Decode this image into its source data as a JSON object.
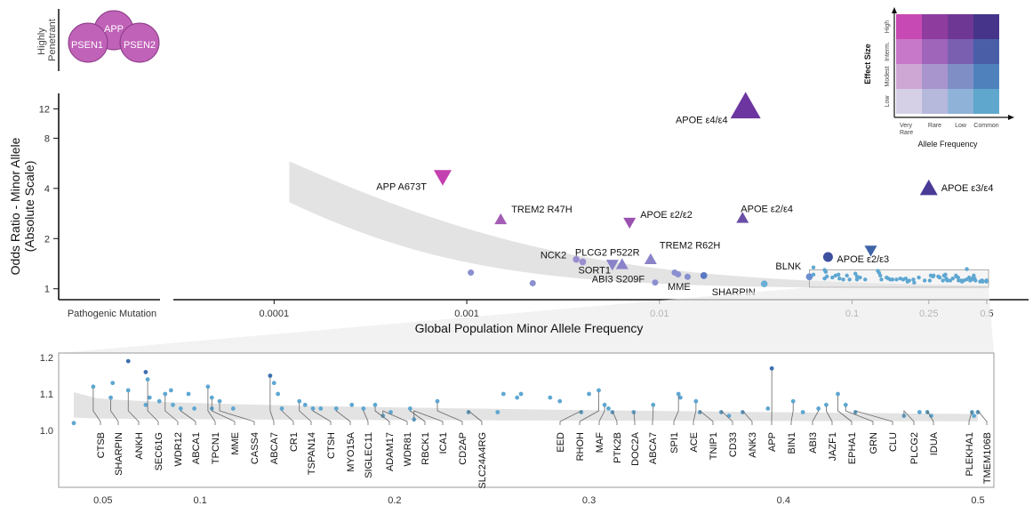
{
  "chart_data": [
    {
      "type": "scatter",
      "panel": "main",
      "xlabel": "Global Population Minor Allele Frequency",
      "ylabel": "Odds Ratio - Minor Allele",
      "ylabel2": "(Absolute Scale)",
      "x_scale": "log",
      "y_scale": "log",
      "xlim": [
        3e-05,
        0.5
      ],
      "ylim": [
        0.85,
        14
      ],
      "x_ticks": [
        {
          "value": 0.0001,
          "label": "0.0001"
        },
        {
          "value": 0.001,
          "label": "0.001"
        },
        {
          "value": 0.01,
          "label": "0.01"
        },
        {
          "value": 0.1,
          "label": "0.1"
        },
        {
          "value": 0.25,
          "label": "0.25"
        },
        {
          "value": 0.5,
          "label": "0.5"
        }
      ],
      "y_ticks": [
        {
          "value": 1,
          "label": "1"
        },
        {
          "value": 2,
          "label": "2"
        },
        {
          "value": 4,
          "label": "4"
        },
        {
          "value": 8,
          "label": "8"
        },
        {
          "value": 12,
          "label": "12"
        }
      ],
      "pathogenic_axis_label": "Pathogenic Mutation",
      "highly_penetrant_label": "Highly Penetrant",
      "highly_penetrant_genes": [
        "APP",
        "PSEN1",
        "PSEN2"
      ],
      "labeled_points": [
        {
          "label": "APOE ε4/ε4",
          "x": 0.028,
          "y": 12.3,
          "marker": "triangle-up",
          "size": "large",
          "color": "#6c35a0"
        },
        {
          "label": "APP A673T",
          "x": 0.00075,
          "y": 4.7,
          "marker": "triangle-down",
          "size": "medium",
          "color": "#c43fb0"
        },
        {
          "label": "APOE ε3/ε4",
          "x": 0.25,
          "y": 4.0,
          "marker": "triangle-up",
          "size": "medium",
          "color": "#4b3a96"
        },
        {
          "label": "TREM2 R47H",
          "x": 0.0015,
          "y": 2.6,
          "marker": "triangle-up",
          "size": "small",
          "color": "#a45db5"
        },
        {
          "label": "APOE ε2/ε2",
          "x": 0.007,
          "y": 2.5,
          "marker": "triangle-down",
          "size": "small",
          "color": "#9a52b0"
        },
        {
          "label": "APOE ε2/ε4",
          "x": 0.027,
          "y": 2.65,
          "marker": "triangle-up",
          "size": "small",
          "color": "#6a4fa8"
        },
        {
          "label": "APOE ε2/ε3",
          "x": 0.075,
          "y": 1.55,
          "marker": "circle",
          "size": "medium",
          "color": "#3d4f9f"
        },
        {
          "label": "",
          "x": 0.125,
          "y": 1.7,
          "marker": "triangle-down",
          "size": "small",
          "color": "#3d63a8"
        },
        {
          "label": "TREM2 R62H",
          "x": 0.009,
          "y": 1.5,
          "marker": "triangle-up",
          "size": "small",
          "color": "#8a83c8"
        },
        {
          "label": "PLCG2 P522R",
          "x": 0.0057,
          "y": 1.4,
          "marker": "triangle-down",
          "size": "small",
          "color": "#8a83c8"
        },
        {
          "label": "ABI3 S209F",
          "x": 0.0064,
          "y": 1.4,
          "marker": "triangle-up",
          "size": "small",
          "color": "#8a83c8"
        },
        {
          "label": "NCK2",
          "x": 0.0037,
          "y": 1.5,
          "marker": "circle",
          "size": "small",
          "color": "#9a8ed0"
        },
        {
          "label": "SORT1",
          "x": 0.004,
          "y": 1.45,
          "marker": "circle",
          "size": "small",
          "color": "#9a8ed0"
        },
        {
          "label": "MME",
          "x": 0.017,
          "y": 1.2,
          "marker": "circle",
          "size": "small",
          "color": "#5b79c2"
        },
        {
          "label": "BLNK",
          "x": 0.06,
          "y": 1.18,
          "marker": "circle",
          "size": "small",
          "color": "#6b8ed0"
        },
        {
          "label": "SHARPIN",
          "x": 0.035,
          "y": 1.07,
          "marker": "circle",
          "size": "small",
          "color": "#6aaed8"
        }
      ],
      "unlabeled_points": [
        {
          "x": 0.00105,
          "y": 1.25
        },
        {
          "x": 0.0022,
          "y": 1.08
        },
        {
          "x": 0.0095,
          "y": 1.09
        },
        {
          "x": 0.012,
          "y": 1.25
        },
        {
          "x": 0.0125,
          "y": 1.22
        },
        {
          "x": 0.014,
          "y": 1.18
        }
      ],
      "confidence_band": "gray shaded band decreasing with allele frequency",
      "legend": {
        "xlabel": "Allele Frequency",
        "ylabel": "Effect Size",
        "x_categories": [
          "Very Rare",
          "Rare",
          "Low",
          "Common"
        ],
        "y_categories": [
          "Low",
          "Modest",
          "Interm.",
          "High"
        ],
        "colors": [
          [
            "#d6d0e6",
            "#b6b8dc",
            "#8fb3d8",
            "#5fa7cc"
          ],
          [
            "#cfa7d5",
            "#a895ce",
            "#7f8fc6",
            "#4f82bd"
          ],
          [
            "#c878c8",
            "#9e65ba",
            "#7a5fb1",
            "#4a5ea8"
          ],
          [
            "#c749b3",
            "#8f3c9f",
            "#6e3794",
            "#45348a"
          ]
        ],
        "placement": "top-right"
      }
    },
    {
      "type": "scatter",
      "panel": "zoom",
      "x_ticks": [
        {
          "value": 0.05,
          "label": "0.05"
        },
        {
          "value": 0.1,
          "label": "0.1"
        },
        {
          "value": 0.2,
          "label": "0.2"
        },
        {
          "value": 0.3,
          "label": "0.3"
        },
        {
          "value": 0.4,
          "label": "0.4"
        },
        {
          "value": 0.5,
          "label": "0.5"
        }
      ],
      "y_ticks": [
        {
          "value": 1.0,
          "label": "1.0"
        },
        {
          "value": 1.1,
          "label": "1.1"
        },
        {
          "value": 1.2,
          "label": "1.2"
        }
      ],
      "xlim": [
        0.03,
        0.51
      ],
      "ylim": [
        0.99,
        1.21
      ],
      "points": [
        {
          "x": 0.035,
          "y": 1.02
        },
        {
          "x": 0.045,
          "y": 1.12
        },
        {
          "x": 0.054,
          "y": 1.09
        },
        {
          "x": 0.055,
          "y": 1.13
        },
        {
          "x": 0.063,
          "y": 1.19
        },
        {
          "x": 0.063,
          "y": 1.11
        },
        {
          "x": 0.072,
          "y": 1.16
        },
        {
          "x": 0.073,
          "y": 1.14
        },
        {
          "x": 0.074,
          "y": 1.09
        },
        {
          "x": 0.072,
          "y": 1.07
        },
        {
          "x": 0.079,
          "y": 1.08
        },
        {
          "x": 0.082,
          "y": 1.1
        },
        {
          "x": 0.085,
          "y": 1.11
        },
        {
          "x": 0.086,
          "y": 1.07
        },
        {
          "x": 0.09,
          "y": 1.06
        },
        {
          "x": 0.094,
          "y": 1.1
        },
        {
          "x": 0.097,
          "y": 1.06
        },
        {
          "x": 0.104,
          "y": 1.12
        },
        {
          "x": 0.106,
          "y": 1.09
        },
        {
          "x": 0.106,
          "y": 1.06
        },
        {
          "x": 0.11,
          "y": 1.08
        },
        {
          "x": 0.117,
          "y": 1.06
        },
        {
          "x": 0.136,
          "y": 1.15
        },
        {
          "x": 0.138,
          "y": 1.13
        },
        {
          "x": 0.14,
          "y": 1.1
        },
        {
          "x": 0.142,
          "y": 1.06
        },
        {
          "x": 0.151,
          "y": 1.08
        },
        {
          "x": 0.154,
          "y": 1.07
        },
        {
          "x": 0.158,
          "y": 1.06
        },
        {
          "x": 0.162,
          "y": 1.06
        },
        {
          "x": 0.17,
          "y": 1.06
        },
        {
          "x": 0.178,
          "y": 1.07
        },
        {
          "x": 0.184,
          "y": 1.06
        },
        {
          "x": 0.19,
          "y": 1.07
        },
        {
          "x": 0.194,
          "y": 1.04
        },
        {
          "x": 0.198,
          "y": 1.05
        },
        {
          "x": 0.208,
          "y": 1.06
        },
        {
          "x": 0.21,
          "y": 1.03
        },
        {
          "x": 0.222,
          "y": 1.08
        },
        {
          "x": 0.238,
          "y": 1.05
        },
        {
          "x": 0.253,
          "y": 1.05
        },
        {
          "x": 0.256,
          "y": 1.1
        },
        {
          "x": 0.263,
          "y": 1.09
        },
        {
          "x": 0.265,
          "y": 1.1
        },
        {
          "x": 0.28,
          "y": 1.09
        },
        {
          "x": 0.285,
          "y": 1.08
        },
        {
          "x": 0.296,
          "y": 1.05
        },
        {
          "x": 0.3,
          "y": 1.1
        },
        {
          "x": 0.305,
          "y": 1.11
        },
        {
          "x": 0.308,
          "y": 1.07
        },
        {
          "x": 0.31,
          "y": 1.06
        },
        {
          "x": 0.312,
          "y": 1.05
        },
        {
          "x": 0.323,
          "y": 1.05
        },
        {
          "x": 0.333,
          "y": 1.07
        },
        {
          "x": 0.346,
          "y": 1.1
        },
        {
          "x": 0.347,
          "y": 1.09
        },
        {
          "x": 0.355,
          "y": 1.08
        },
        {
          "x": 0.357,
          "y": 1.05
        },
        {
          "x": 0.368,
          "y": 1.05
        },
        {
          "x": 0.372,
          "y": 1.04
        },
        {
          "x": 0.379,
          "y": 1.05
        },
        {
          "x": 0.392,
          "y": 1.06
        },
        {
          "x": 0.394,
          "y": 1.17
        },
        {
          "x": 0.405,
          "y": 1.08
        },
        {
          "x": 0.41,
          "y": 1.05
        },
        {
          "x": 0.418,
          "y": 1.06
        },
        {
          "x": 0.422,
          "y": 1.07
        },
        {
          "x": 0.428,
          "y": 1.1
        },
        {
          "x": 0.432,
          "y": 1.07
        },
        {
          "x": 0.437,
          "y": 1.05
        },
        {
          "x": 0.462,
          "y": 1.04
        },
        {
          "x": 0.47,
          "y": 1.05
        },
        {
          "x": 0.474,
          "y": 1.05
        },
        {
          "x": 0.476,
          "y": 1.04
        },
        {
          "x": 0.497,
          "y": 1.05
        },
        {
          "x": 0.498,
          "y": 1.04
        },
        {
          "x": 0.5,
          "y": 1.05
        }
      ],
      "gene_labels": [
        {
          "label": "CTSB",
          "x": 0.045,
          "y": 1.12
        },
        {
          "label": "SHARPIN",
          "x": 0.054,
          "y": 1.09
        },
        {
          "label": "ANKH",
          "x": 0.063,
          "y": 1.11
        },
        {
          "label": "SEC61G",
          "x": 0.073,
          "y": 1.14
        },
        {
          "label": "WDR12",
          "x": 0.082,
          "y": 1.1
        },
        {
          "label": "ABCA1",
          "x": 0.09,
          "y": 1.06
        },
        {
          "label": "TPCN1",
          "x": 0.104,
          "y": 1.12
        },
        {
          "label": "MME",
          "x": 0.106,
          "y": 1.09
        },
        {
          "label": "CASS4",
          "x": 0.11,
          "y": 1.08
        },
        {
          "label": "ABCA7",
          "x": 0.136,
          "y": 1.15
        },
        {
          "label": "CR1",
          "x": 0.142,
          "y": 1.06
        },
        {
          "label": "TSPAN14",
          "x": 0.151,
          "y": 1.08
        },
        {
          "label": "CTSH",
          "x": 0.158,
          "y": 1.06
        },
        {
          "label": "MYO15A",
          "x": 0.17,
          "y": 1.06
        },
        {
          "label": "SIGLEC11",
          "x": 0.184,
          "y": 1.06
        },
        {
          "label": "ADAM17",
          "x": 0.19,
          "y": 1.07
        },
        {
          "label": "WDR81",
          "x": 0.194,
          "y": 1.04
        },
        {
          "label": "RBCK1",
          "x": 0.208,
          "y": 1.06
        },
        {
          "label": "ICA1",
          "x": 0.21,
          "y": 1.03
        },
        {
          "label": "CD2AP",
          "x": 0.222,
          "y": 1.08
        },
        {
          "label": "SLC24A4RG",
          "x": 0.238,
          "y": 1.05
        },
        {
          "label": "EED",
          "x": 0.296,
          "y": 1.05
        },
        {
          "label": "RHOH",
          "x": 0.305,
          "y": 1.11
        },
        {
          "label": "MAF",
          "x": 0.308,
          "y": 1.07
        },
        {
          "label": "PTK2B",
          "x": 0.312,
          "y": 1.05
        },
        {
          "label": "DOC2A",
          "x": 0.323,
          "y": 1.05
        },
        {
          "label": "ABCA7",
          "x": 0.333,
          "y": 1.07
        },
        {
          "label": "SPI1",
          "x": 0.346,
          "y": 1.1
        },
        {
          "label": "ACE",
          "x": 0.355,
          "y": 1.08
        },
        {
          "label": "TNIP1",
          "x": 0.357,
          "y": 1.05
        },
        {
          "label": "CD33",
          "x": 0.368,
          "y": 1.05
        },
        {
          "label": "ANK3",
          "x": 0.379,
          "y": 1.05
        },
        {
          "label": "APP",
          "x": 0.394,
          "y": 1.17
        },
        {
          "label": "BIN1",
          "x": 0.405,
          "y": 1.08
        },
        {
          "label": "ABI3",
          "x": 0.418,
          "y": 1.06
        },
        {
          "label": "JAZF1",
          "x": 0.422,
          "y": 1.07
        },
        {
          "label": "EPHA1",
          "x": 0.428,
          "y": 1.1
        },
        {
          "label": "GRN",
          "x": 0.432,
          "y": 1.07
        },
        {
          "label": "CLU",
          "x": 0.437,
          "y": 1.05
        },
        {
          "label": "PLCG2",
          "x": 0.462,
          "y": 1.04
        },
        {
          "label": "IDUA",
          "x": 0.474,
          "y": 1.05
        },
        {
          "label": "PLEKHA1",
          "x": 0.497,
          "y": 1.05
        },
        {
          "label": "TMEM106B",
          "x": 0.5,
          "y": 1.05
        }
      ]
    }
  ]
}
